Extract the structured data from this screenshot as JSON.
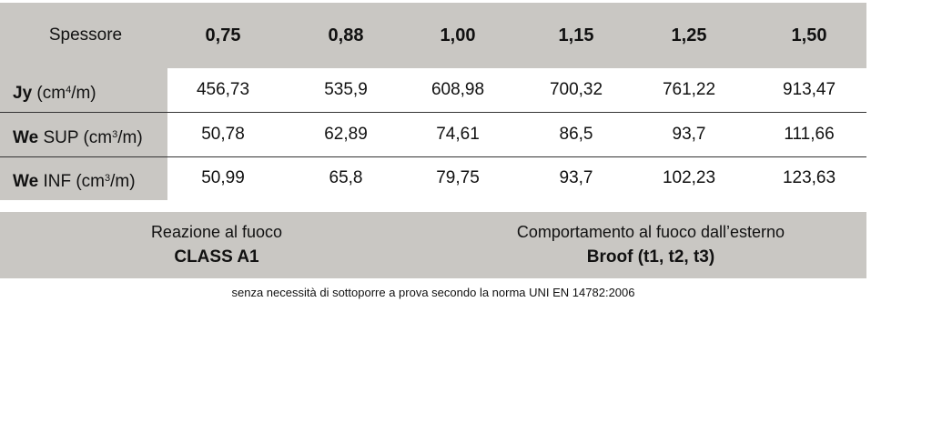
{
  "header": {
    "label": "Spessore",
    "thicknesses": [
      "0,75",
      "0,88",
      "1,00",
      "1,15",
      "1,25",
      "1,50"
    ]
  },
  "rows": [
    {
      "name_bold": "Jy",
      "name_rest": "(cm",
      "sup": "4",
      "unit_end": "/m)",
      "values": [
        "456,73",
        "535,9",
        "608,98",
        "700,32",
        "761,22",
        "913,47"
      ]
    },
    {
      "name_bold": "We",
      "name_rest": "SUP (cm",
      "sup": "3",
      "unit_end": "/m)",
      "values": [
        "50,78",
        "62,89",
        "74,61",
        "86,5",
        "93,7",
        "111,66"
      ]
    },
    {
      "name_bold": "We",
      "name_rest": "INF (cm",
      "sup": "3",
      "unit_end": "/m)",
      "values": [
        "50,99",
        "65,8",
        "79,75",
        "93,7",
        "102,23",
        "123,63"
      ]
    }
  ],
  "fire": {
    "reaction_label": "Reazione al fuoco",
    "reaction_value": "CLASS A1",
    "external_label": "Comportamento al fuoco dall’esterno",
    "external_value": "Broof (t1, t2, t3)"
  },
  "note": "senza necessità di sottoporre a prova secondo la norma UNI EN 14782:2006",
  "colors": {
    "band": "#c9c7c3",
    "rule": "#333333"
  }
}
